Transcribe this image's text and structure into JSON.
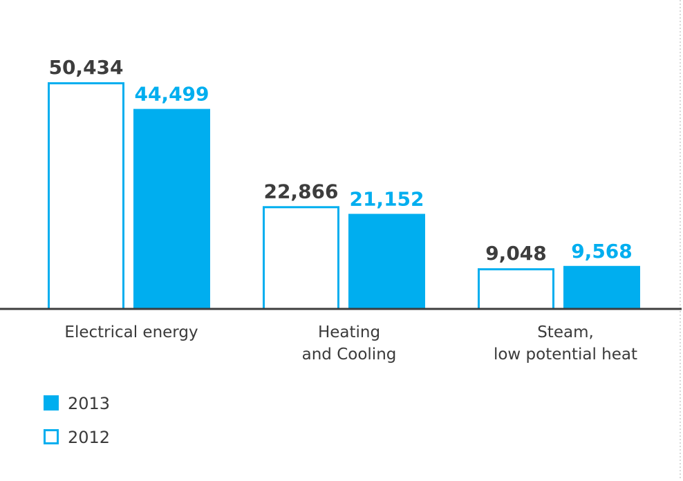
{
  "colors": {
    "series_2013": "#00aeef",
    "series_2012_outline": "#00aeef",
    "label_2012": "#3d3d3d",
    "label_2013": "#00aeef",
    "axis": "#3d3d3d",
    "border_dots": "#cccccc"
  },
  "chart_data": {
    "type": "bar",
    "categories": [
      [
        "Electrical energy"
      ],
      [
        "Heating",
        "and Cooling"
      ],
      [
        "Steam,",
        "low potential heat"
      ]
    ],
    "series": [
      {
        "name": "2012",
        "values": [
          50434,
          22866,
          9048
        ],
        "labels": [
          "50,434",
          "22,866",
          "9,048"
        ],
        "style": "outline"
      },
      {
        "name": "2013",
        "values": [
          44499,
          21152,
          9568
        ],
        "labels": [
          "44,499",
          "21,152",
          "9,568"
        ],
        "style": "filled"
      }
    ],
    "legend": [
      {
        "label": "2013",
        "style": "filled"
      },
      {
        "label": "2012",
        "style": "outline"
      }
    ],
    "legend_placement": "bottom-left",
    "grid": false,
    "title": "",
    "xlabel": "",
    "ylabel": ""
  }
}
